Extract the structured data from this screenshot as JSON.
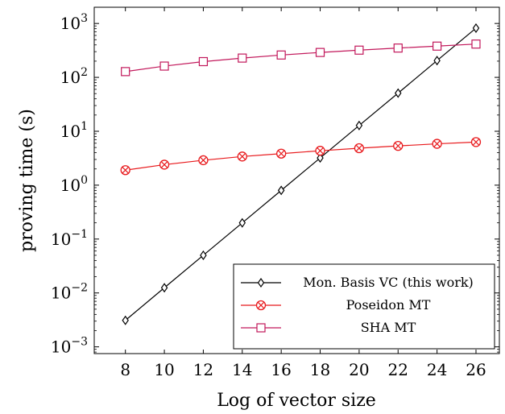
{
  "chart_data": {
    "type": "line",
    "title": "",
    "xlabel": "Log of vector size",
    "ylabel": "proving time (s)",
    "x": [
      8,
      10,
      12,
      14,
      16,
      18,
      20,
      22,
      24,
      26
    ],
    "xticks": [
      "8",
      "10",
      "12",
      "14",
      "16",
      "18",
      "20",
      "22",
      "24",
      "26"
    ],
    "xlim": [
      6.4,
      27.2
    ],
    "yscale": "log",
    "ylim": [
      0.00075,
      2000
    ],
    "yticks": [
      {
        "value": 0.001,
        "mantissa": "10",
        "exp": "−3"
      },
      {
        "value": 0.01,
        "mantissa": "10",
        "exp": "−2"
      },
      {
        "value": 0.1,
        "mantissa": "10",
        "exp": "−1"
      },
      {
        "value": 1,
        "mantissa": "10",
        "exp": "0"
      },
      {
        "value": 10,
        "mantissa": "10",
        "exp": "1"
      },
      {
        "value": 100,
        "mantissa": "10",
        "exp": "2"
      },
      {
        "value": 1000,
        "mantissa": "10",
        "exp": "3"
      }
    ],
    "legend_position": "bottom-right",
    "grid": false,
    "series": [
      {
        "name": "Mon. Basis VC (this work)",
        "color": "#000000",
        "marker": "diamond",
        "values": [
          0.0031,
          0.0125,
          0.05,
          0.2,
          0.8,
          3.2,
          12.8,
          51,
          205,
          820
        ]
      },
      {
        "name": "Poseidon MT",
        "color": "#e8191c",
        "marker": "circle-x",
        "values": [
          1.9,
          2.4,
          2.9,
          3.4,
          3.85,
          4.35,
          4.85,
          5.35,
          5.85,
          6.3
        ]
      },
      {
        "name": "SHA MT",
        "color": "#c2185b",
        "marker": "square",
        "values": [
          128,
          162,
          196,
          228,
          260,
          290,
          320,
          350,
          380,
          415
        ]
      }
    ]
  }
}
